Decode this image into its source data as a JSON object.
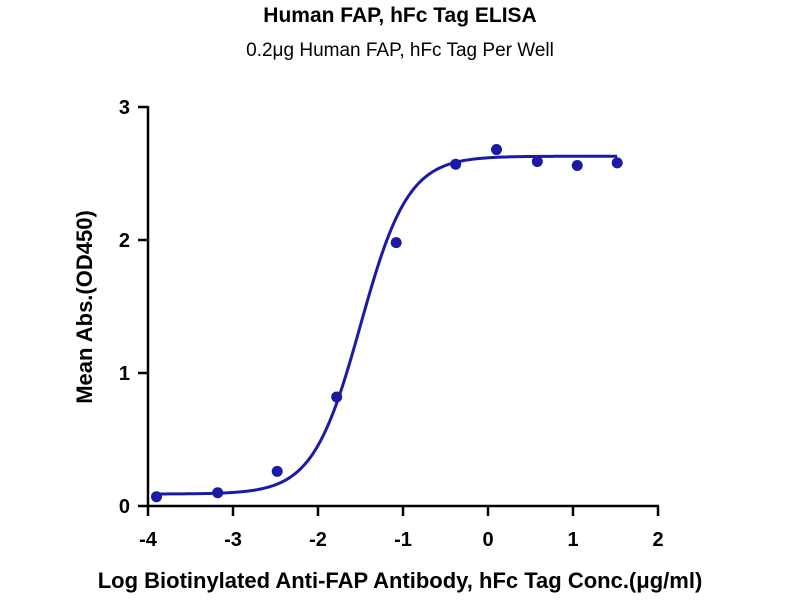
{
  "chart_data": {
    "type": "scatter",
    "title": "Human FAP, hFc Tag ELISA",
    "subtitle": "0.2μg Human FAP, hFc Tag Per Well",
    "xlabel": "Log Biotinylated Anti-FAP Antibody, hFc Tag Conc.(μg/ml)",
    "ylabel": "Mean Abs.(OD450)",
    "xlim": [
      -4,
      2
    ],
    "ylim": [
      0,
      3
    ],
    "xticks": [
      "-4",
      "-3",
      "-2",
      "-1",
      "0",
      "1",
      "2"
    ],
    "yticks": [
      "0",
      "1",
      "2",
      "3"
    ],
    "grid": false,
    "color": "#1a1aa6",
    "series": [
      {
        "x": [
          -3.9,
          -3.18,
          -2.48,
          -1.78,
          -1.08,
          -0.38,
          0.1,
          0.58,
          1.05,
          1.52
        ],
        "y": [
          0.07,
          0.1,
          0.26,
          0.82,
          1.98,
          2.57,
          2.68,
          2.59,
          2.56,
          2.58
        ]
      }
    ],
    "fit": {
      "model": "4PL",
      "bottom": 0.09,
      "top": 2.63,
      "logEC50": -1.5,
      "hill": 1.55
    }
  }
}
